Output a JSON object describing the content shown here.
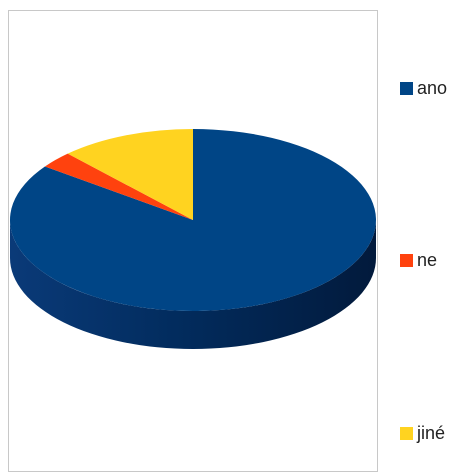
{
  "chart_data": {
    "type": "pie",
    "style": "3d",
    "categories": [
      "ano",
      "ne",
      "jiné"
    ],
    "values": [
      85,
      3,
      12
    ],
    "colors": [
      "#004586",
      "#ff420e",
      "#ffd320"
    ],
    "title": "",
    "legend": "right",
    "legend_entries": [
      {
        "label": "ano",
        "color": "#004586"
      },
      {
        "label": "ne",
        "color": "#ff420e"
      },
      {
        "label": "jiné",
        "color": "#ffd320"
      }
    ]
  }
}
